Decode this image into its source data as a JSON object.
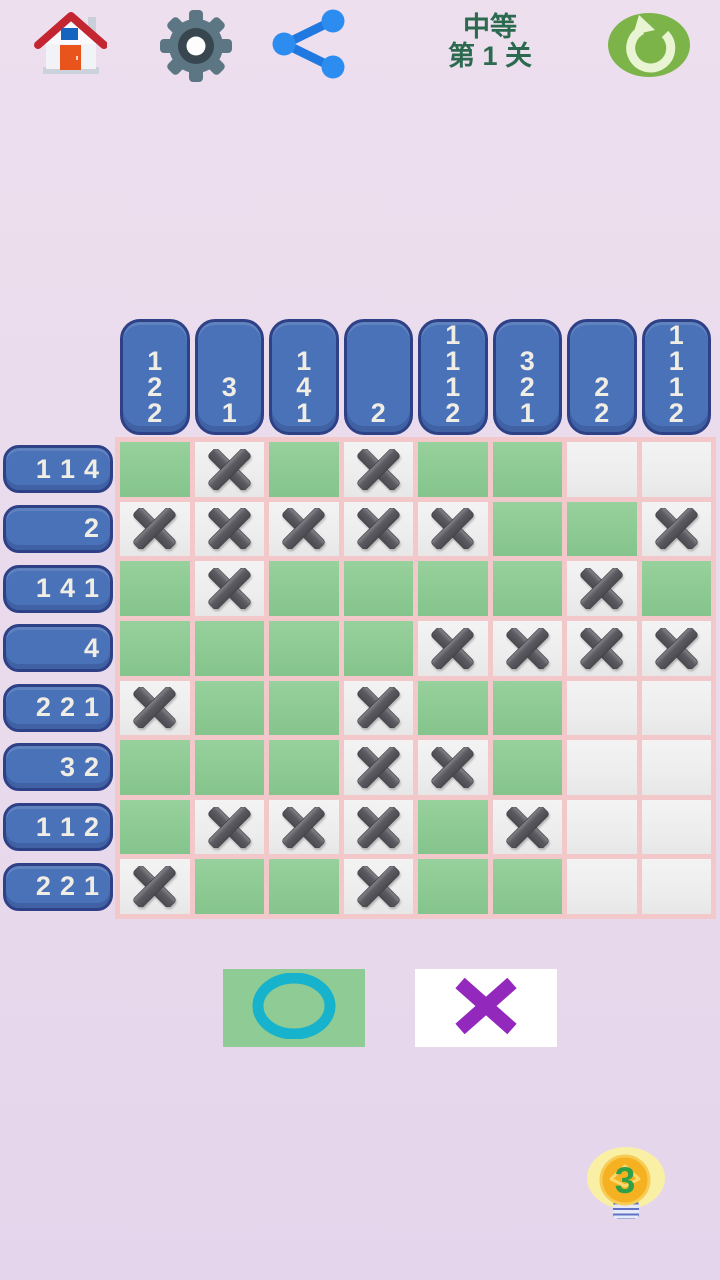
{
  "top_bar": {
    "home_icon": "home",
    "settings_icon": "gear",
    "share_icon": "share-nodes",
    "restart_icon": "circular-arrow",
    "level": {
      "difficulty": "中等",
      "stage": "第 1 关"
    }
  },
  "puzzle": {
    "col_clues": [
      [
        "1",
        "2",
        "2"
      ],
      [
        "3",
        "1"
      ],
      [
        "1",
        "4",
        "1"
      ],
      [
        "2"
      ],
      [
        "1",
        "1",
        "1",
        "2"
      ],
      [
        "3",
        "2",
        "1"
      ],
      [
        "2",
        "2"
      ],
      [
        "1",
        "1",
        "1",
        "2"
      ]
    ],
    "row_clues": [
      [
        "1",
        "1",
        "4"
      ],
      [
        "2"
      ],
      [
        "1",
        "4",
        "1"
      ],
      [
        "4"
      ],
      [
        "2",
        "2",
        "1"
      ],
      [
        "3",
        "2"
      ],
      [
        "1",
        "1",
        "2"
      ],
      [
        "2",
        "2",
        "1"
      ]
    ],
    "grid": [
      [
        "filled",
        "cross",
        "filled",
        "cross",
        "filled",
        "filled",
        "empty",
        "empty"
      ],
      [
        "cross",
        "cross",
        "cross",
        "cross",
        "cross",
        "filled",
        "filled",
        "cross"
      ],
      [
        "filled",
        "cross",
        "filled",
        "filled",
        "filled",
        "filled",
        "cross",
        "filled"
      ],
      [
        "filled",
        "filled",
        "filled",
        "filled",
        "cross",
        "cross",
        "cross",
        "cross"
      ],
      [
        "cross",
        "filled",
        "filled",
        "cross",
        "filled",
        "filled",
        "empty",
        "empty"
      ],
      [
        "filled",
        "filled",
        "filled",
        "cross",
        "cross",
        "filled",
        "empty",
        "empty"
      ],
      [
        "filled",
        "cross",
        "cross",
        "cross",
        "filled",
        "cross",
        "empty",
        "empty"
      ],
      [
        "cross",
        "filled",
        "filled",
        "cross",
        "filled",
        "filled",
        "empty",
        "empty"
      ]
    ]
  },
  "tools": {
    "fill_tool_icon": "circle-outline",
    "mark_tool_icon": "cross"
  },
  "hint": {
    "icon": "lightbulb",
    "count": "3"
  },
  "colors": {
    "bg": "#e9dbec",
    "grid-line": "#f2c8ca",
    "cell-filled": "#8fcb95",
    "cell-empty": "#ededed",
    "clue-fill": "#4a72b8",
    "clue-border": "#2e4086",
    "clue-text": "#f0ede5",
    "x-mark": "#57575d",
    "level-text": "#2b6a4f",
    "restart-green": "#7cb44a",
    "share-blue": "#2d8cf0",
    "gear-gray": "#5d7683",
    "tool-circle": "#17b2cc",
    "tool-cross": "#9228bc",
    "bulb-amber": "#f5b122",
    "hint-number": "#2fa048"
  }
}
